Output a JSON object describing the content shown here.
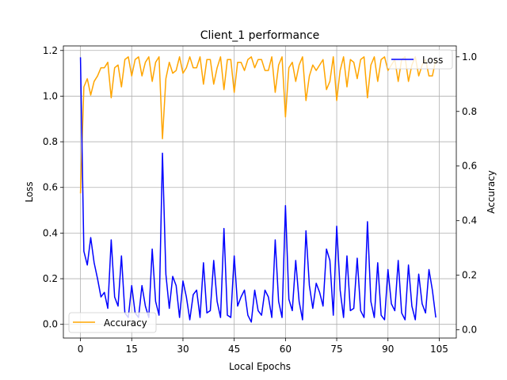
{
  "chart_data": {
    "type": "line",
    "title": "Client_1 performance",
    "xlabel": "Local Epochs",
    "ylabel_left": "Loss",
    "ylabel_right": "Accuracy",
    "xlim": [
      -5,
      110
    ],
    "ylim_left": [
      -0.06,
      1.22
    ],
    "ylim_right": [
      -0.03,
      1.04
    ],
    "xticks": [
      0,
      15,
      30,
      45,
      60,
      75,
      90,
      105
    ],
    "yticks_left": [
      0.0,
      0.2,
      0.4,
      0.6,
      0.8,
      1.0,
      1.2
    ],
    "yticks_right": [
      0.0,
      0.2,
      0.4,
      0.6,
      0.8,
      1.0
    ],
    "ytick_labels_left": [
      "0.0",
      "0.2",
      "0.4",
      "0.6",
      "0.8",
      "1.0",
      "1.2"
    ],
    "ytick_labels_right": [
      "0.0",
      "0.2",
      "0.4",
      "0.6",
      "0.8",
      "1.0"
    ],
    "grid": true,
    "series": [
      {
        "name": "Loss",
        "axis": "left",
        "color": "#0000ff",
        "legend_location": "upper right",
        "values": [
          1.17,
          0.32,
          0.26,
          0.38,
          0.27,
          0.2,
          0.12,
          0.14,
          0.07,
          0.37,
          0.12,
          0.08,
          0.3,
          0.05,
          0.03,
          0.17,
          0.05,
          0.03,
          0.17,
          0.08,
          0.03,
          0.33,
          0.1,
          0.04,
          0.75,
          0.22,
          0.07,
          0.21,
          0.17,
          0.03,
          0.19,
          0.12,
          0.02,
          0.13,
          0.15,
          0.03,
          0.27,
          0.05,
          0.06,
          0.28,
          0.1,
          0.03,
          0.42,
          0.04,
          0.03,
          0.3,
          0.08,
          0.12,
          0.15,
          0.04,
          0.01,
          0.15,
          0.06,
          0.04,
          0.15,
          0.12,
          0.03,
          0.37,
          0.1,
          0.03,
          0.52,
          0.11,
          0.06,
          0.28,
          0.1,
          0.02,
          0.41,
          0.17,
          0.07,
          0.18,
          0.14,
          0.08,
          0.33,
          0.28,
          0.04,
          0.43,
          0.15,
          0.03,
          0.3,
          0.06,
          0.07,
          0.29,
          0.06,
          0.03,
          0.45,
          0.1,
          0.03,
          0.27,
          0.04,
          0.02,
          0.24,
          0.09,
          0.06,
          0.28,
          0.05,
          0.02,
          0.26,
          0.08,
          0.02,
          0.22,
          0.09,
          0.05,
          0.24,
          0.15,
          0.03
        ]
      },
      {
        "name": "Accuracy",
        "axis": "right",
        "color": "#ffa500",
        "legend_location": "lower left",
        "values": [
          0.5,
          0.89,
          0.92,
          0.86,
          0.91,
          0.93,
          0.96,
          0.96,
          0.98,
          0.85,
          0.96,
          0.97,
          0.89,
          0.99,
          1.0,
          0.93,
          0.99,
          1.0,
          0.93,
          0.98,
          1.0,
          0.91,
          0.98,
          1.0,
          0.7,
          0.92,
          0.98,
          0.94,
          0.95,
          1.0,
          0.94,
          0.96,
          1.0,
          0.96,
          0.96,
          1.0,
          0.9,
          0.99,
          0.99,
          0.9,
          0.96,
          1.0,
          0.88,
          0.99,
          0.99,
          0.87,
          0.98,
          0.98,
          0.95,
          0.99,
          1.0,
          0.96,
          0.99,
          0.99,
          0.95,
          0.95,
          1.0,
          0.87,
          0.97,
          1.0,
          0.78,
          0.96,
          0.98,
          0.91,
          0.97,
          1.0,
          0.84,
          0.93,
          0.97,
          0.95,
          0.97,
          0.99,
          0.88,
          0.91,
          1.0,
          0.84,
          0.95,
          1.0,
          0.89,
          0.99,
          0.98,
          0.92,
          0.99,
          1.0,
          0.85,
          0.97,
          1.0,
          0.91,
          0.99,
          1.0,
          0.95,
          0.97,
          0.99,
          0.91,
          0.99,
          1.0,
          0.91,
          0.97,
          1.0,
          0.93,
          0.97,
          0.99,
          0.93,
          0.93,
          0.99
        ]
      }
    ]
  }
}
